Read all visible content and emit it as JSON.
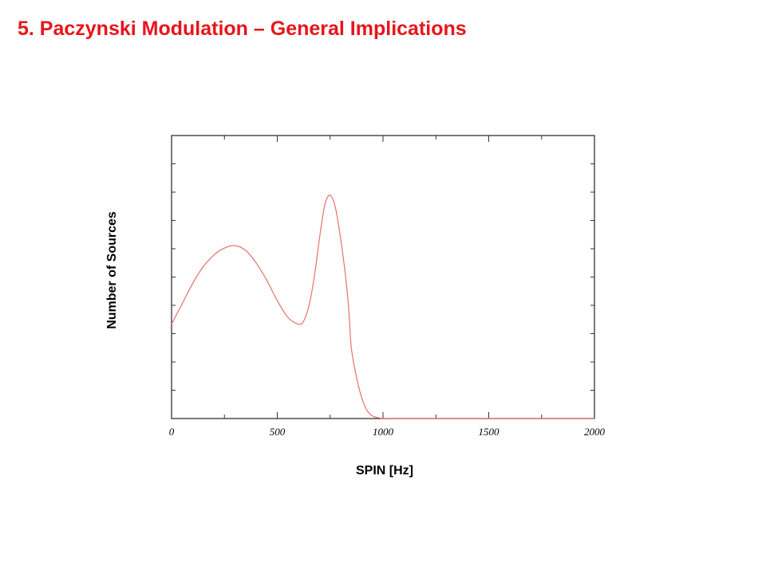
{
  "slide": {
    "title": "5. Paczynski Modulation – General Implications"
  },
  "colors": {
    "title": "#e8141b",
    "curve": "#e8706a",
    "frame": "#333333"
  },
  "chart_data": {
    "type": "line",
    "xlabel": "SPIN [Hz]",
    "ylabel": "Number of Sources",
    "xlim": [
      0,
      2000
    ],
    "ylim": [
      0,
      9
    ],
    "xticks": [
      0,
      500,
      1000,
      1500,
      2000
    ],
    "x_minor_step": 250,
    "y_tick_count": 10,
    "y_tick_labels": false,
    "grid": false,
    "legend": "none",
    "series": [
      {
        "x": [
          0,
          50,
          100,
          150,
          200,
          250,
          300,
          350,
          400,
          450,
          500,
          550,
          600,
          625,
          650,
          675,
          700,
          725,
          750,
          775,
          800,
          825,
          840,
          850,
          875,
          900,
          925,
          950,
          975,
          1000,
          1050,
          1100,
          1150,
          1200,
          1300,
          1500,
          2000
        ],
        "y": [
          3.0,
          3.65,
          4.3,
          4.83,
          5.2,
          5.42,
          5.5,
          5.35,
          4.95,
          4.4,
          3.75,
          3.22,
          3.0,
          3.1,
          3.6,
          4.5,
          5.75,
          6.8,
          7.1,
          6.7,
          5.7,
          4.4,
          3.3,
          2.25,
          1.3,
          0.65,
          0.25,
          0.08,
          0.03,
          0.0,
          0.0,
          0.0,
          0.0,
          0.0,
          0.0,
          0.0,
          0.0
        ]
      }
    ]
  }
}
